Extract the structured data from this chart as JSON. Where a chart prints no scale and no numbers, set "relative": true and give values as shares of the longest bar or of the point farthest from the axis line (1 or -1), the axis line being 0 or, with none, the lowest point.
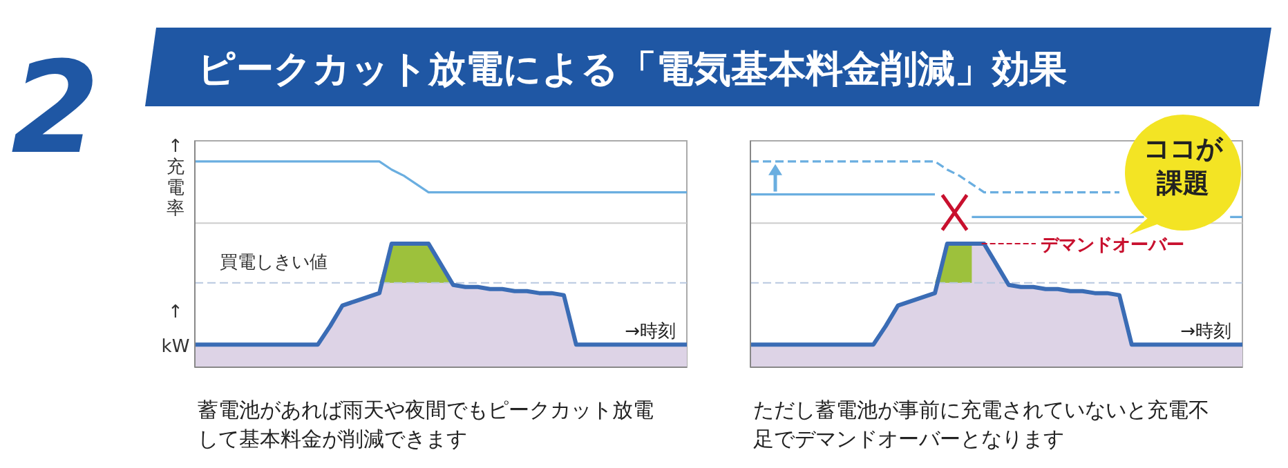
{
  "chart_data": [
    {
      "type": "other",
      "title": "ピークカット放電による「電気基本料金削減」効果",
      "annotations": [
        "2"
      ]
    },
    {
      "type": "line",
      "relative": true,
      "ylabel": "↑kW",
      "y2label": "↑充電率",
      "xlabel": "→時刻",
      "categories": [
        null,
        null,
        null,
        null,
        null,
        null,
        null,
        null,
        null,
        null,
        null,
        null,
        null,
        null,
        null,
        null,
        null,
        null,
        null,
        null,
        null,
        null,
        null,
        null,
        null,
        null,
        null,
        null,
        null,
        null,
        null,
        null,
        null,
        null,
        null,
        null,
        null,
        null,
        null,
        null,
        null
      ],
      "series": [
        {
          "type": "area",
          "color": "#3a6cb5",
          "values": [
            0.11,
            0.11,
            0.11,
            0.11,
            0.11,
            0.11,
            0.11,
            0.11,
            0.11,
            0.11,
            0.11,
            0.2,
            0.3,
            0.32,
            0.34,
            0.36,
            0.6,
            0.6,
            0.6,
            0.6,
            0.5,
            0.4,
            0.39,
            0.39,
            0.38,
            0.38,
            0.37,
            0.37,
            0.36,
            0.36,
            0.35,
            0.11,
            0.11,
            0.11,
            0.11,
            0.11,
            0.11,
            0.11,
            0.11,
            0.11,
            0.11
          ]
        },
        {
          "type": "area",
          "color": "#9dc13c",
          "values": [
            null,
            null,
            null,
            null,
            null,
            null,
            null,
            null,
            null,
            null,
            null,
            null,
            null,
            null,
            null,
            0.41,
            0.6,
            0.6,
            0.6,
            0.6,
            0.5,
            0.41,
            null,
            null,
            null,
            null,
            null,
            null,
            null,
            null,
            null,
            null,
            null,
            null,
            null,
            null,
            null,
            null,
            null,
            null,
            null
          ]
        },
        {
          "type": "line",
          "color": "#6aaee0",
          "line_style": "solid",
          "values": [
            1,
            1,
            1,
            1,
            1,
            1,
            1,
            1,
            1,
            1,
            1,
            1,
            1,
            1,
            1,
            1,
            0.96,
            0.93,
            0.89,
            0.85,
            0.85,
            0.85,
            0.85,
            0.85,
            0.85,
            0.85,
            0.85,
            0.85,
            0.85,
            0.85,
            0.85,
            0.85,
            0.85,
            0.85,
            0.85,
            0.85,
            0.85,
            0.85,
            0.85,
            0.85,
            0.85
          ]
        }
      ],
      "ref_lines": [
        {
          "axis": "y",
          "value": 0.7,
          "color": "#cccccc",
          "line_style": "solid"
        },
        {
          "axis": "y",
          "value": 0.41,
          "label": "買電しきい値",
          "color": "#b8c8e0",
          "line_style": "dashed"
        }
      ],
      "annotations": [
        "蓄電池があれば雨天や夜間でもピークカット放電して基本料金が削減できます"
      ]
    },
    {
      "type": "line",
      "relative": true,
      "xlabel": "→時刻",
      "categories": [
        null,
        null,
        null,
        null,
        null,
        null,
        null,
        null,
        null,
        null,
        null,
        null,
        null,
        null,
        null,
        null,
        null,
        null,
        null,
        null,
        null,
        null,
        null,
        null,
        null,
        null,
        null,
        null,
        null,
        null,
        null,
        null,
        null,
        null,
        null,
        null,
        null,
        null,
        null,
        null,
        null
      ],
      "series": [
        {
          "type": "area",
          "color": "#3a6cb5",
          "values": [
            0.11,
            0.11,
            0.11,
            0.11,
            0.11,
            0.11,
            0.11,
            0.11,
            0.11,
            0.11,
            0.11,
            0.2,
            0.3,
            0.32,
            0.34,
            0.36,
            0.6,
            0.6,
            0.6,
            0.6,
            0.5,
            0.4,
            0.39,
            0.39,
            0.38,
            0.38,
            0.37,
            0.37,
            0.36,
            0.36,
            0.35,
            0.11,
            0.11,
            0.11,
            0.11,
            0.11,
            0.11,
            0.11,
            0.11,
            0.11,
            0.11
          ]
        },
        {
          "type": "area",
          "color": "#9dc13c",
          "values": [
            null,
            null,
            null,
            null,
            null,
            null,
            null,
            null,
            null,
            null,
            null,
            null,
            null,
            null,
            null,
            0.41,
            0.6,
            0.6,
            0.6,
            null,
            null,
            null,
            null,
            null,
            null,
            null,
            null,
            null,
            null,
            null,
            null,
            null,
            null,
            null,
            null,
            null,
            null,
            null,
            null,
            null,
            null
          ]
        },
        {
          "type": "line",
          "color": "#6aaee0",
          "line_style": "dashed",
          "values": [
            1,
            1,
            1,
            1,
            1,
            1,
            1,
            1,
            1,
            1,
            1,
            1,
            1,
            1,
            1,
            1,
            0.96,
            0.93,
            0.89,
            0.85,
            0.85,
            0.85,
            0.85,
            0.85,
            0.85,
            0.85,
            0.85,
            0.85,
            0.85,
            0.85,
            0.85,
            null,
            null,
            null,
            null,
            null,
            null,
            null,
            null,
            null,
            null
          ]
        },
        {
          "type": "line",
          "color": "#6aaee0",
          "line_style": "solid",
          "values": [
            0.84,
            0.84,
            0.84,
            0.84,
            0.84,
            0.84,
            0.84,
            0.84,
            0.84,
            0.84,
            0.84,
            0.84,
            0.84,
            0.84,
            0.84,
            0.84,
            null,
            null,
            0.73,
            0.73,
            0.73,
            0.73,
            0.73,
            0.73,
            0.73,
            0.73,
            0.73,
            0.73,
            0.73,
            0.73,
            0.73,
            0.73,
            0.73,
            null,
            null,
            null,
            null,
            null,
            null,
            0.73,
            0.73
          ]
        }
      ],
      "ref_lines": [
        {
          "axis": "y",
          "value": 0.7,
          "color": "#cccccc",
          "line_style": "solid"
        },
        {
          "axis": "y",
          "value": 0.41,
          "color": "#b8c8e0",
          "line_style": "dashed"
        }
      ],
      "annotations": [
        "ココが課題",
        "デマンドオーバー",
        "ただし蓄電池が事前に充電されていないと充電不足でデマンドオーバーとなります"
      ]
    }
  ]
}
